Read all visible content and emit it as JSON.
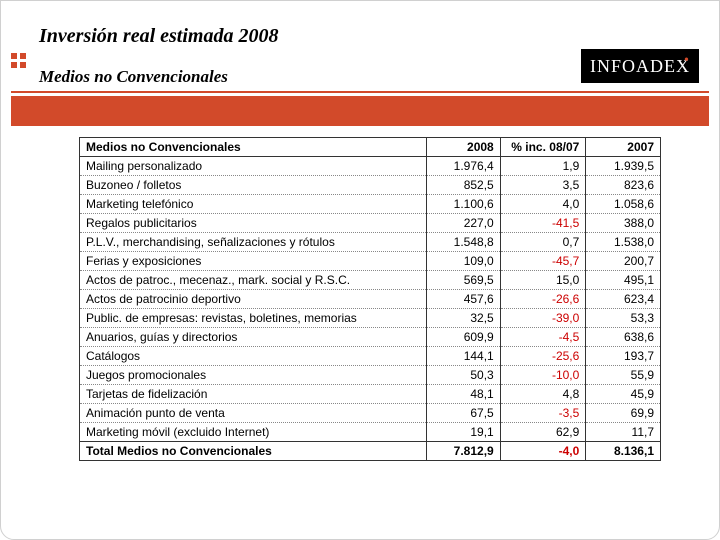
{
  "header": {
    "title": "Inversión real estimada 2008",
    "subtitle": "Medios no Convencionales",
    "logo_text": "INFOADEX"
  },
  "colors": {
    "accent": "#d24a2a",
    "negative": "#cc0000",
    "logo_bg": "#000000",
    "logo_fg": "#ffffff"
  },
  "table": {
    "columns": [
      "Medios no Convencionales",
      "2008",
      "% inc. 08/07",
      "2007"
    ],
    "rows": [
      {
        "label": "Mailing personalizado",
        "v2008": "1.976,4",
        "pct": "1,9",
        "neg": false,
        "v2007": "1.939,5"
      },
      {
        "label": "Buzoneo / folletos",
        "v2008": "852,5",
        "pct": "3,5",
        "neg": false,
        "v2007": "823,6"
      },
      {
        "label": "Marketing telefónico",
        "v2008": "1.100,6",
        "pct": "4,0",
        "neg": false,
        "v2007": "1.058,6"
      },
      {
        "label": "Regalos publicitarios",
        "v2008": "227,0",
        "pct": "-41,5",
        "neg": true,
        "v2007": "388,0"
      },
      {
        "label": "P.L.V., merchandising, señalizaciones y rótulos",
        "v2008": "1.548,8",
        "pct": "0,7",
        "neg": false,
        "v2007": "1.538,0"
      },
      {
        "label": "Ferias y exposiciones",
        "v2008": "109,0",
        "pct": "-45,7",
        "neg": true,
        "v2007": "200,7"
      },
      {
        "label": "Actos de patroc., mecenaz., mark. social y R.S.C.",
        "v2008": "569,5",
        "pct": "15,0",
        "neg": false,
        "v2007": "495,1"
      },
      {
        "label": "Actos de patrocinio deportivo",
        "v2008": "457,6",
        "pct": "-26,6",
        "neg": true,
        "v2007": "623,4"
      },
      {
        "label": "Public. de empresas: revistas, boletines, memorias",
        "v2008": "32,5",
        "pct": "-39,0",
        "neg": true,
        "v2007": "53,3"
      },
      {
        "label": "Anuarios, guías y directorios",
        "v2008": "609,9",
        "pct": "-4,5",
        "neg": true,
        "v2007": "638,6"
      },
      {
        "label": "Catálogos",
        "v2008": "144,1",
        "pct": "-25,6",
        "neg": true,
        "v2007": "193,7"
      },
      {
        "label": "Juegos promocionales",
        "v2008": "50,3",
        "pct": "-10,0",
        "neg": true,
        "v2007": "55,9"
      },
      {
        "label": "Tarjetas de fidelización",
        "v2008": "48,1",
        "pct": "4,8",
        "neg": false,
        "v2007": "45,9"
      },
      {
        "label": "Animación punto de venta",
        "v2008": "67,5",
        "pct": "-3,5",
        "neg": true,
        "v2007": "69,9"
      },
      {
        "label": "Marketing móvil (excluido Internet)",
        "v2008": "19,1",
        "pct": "62,9",
        "neg": false,
        "v2007": "11,7"
      }
    ],
    "total": {
      "label": "Total Medios no Convencionales",
      "v2008": "7.812,9",
      "pct": "-4,0",
      "neg": true,
      "v2007": "8.136,1"
    }
  }
}
